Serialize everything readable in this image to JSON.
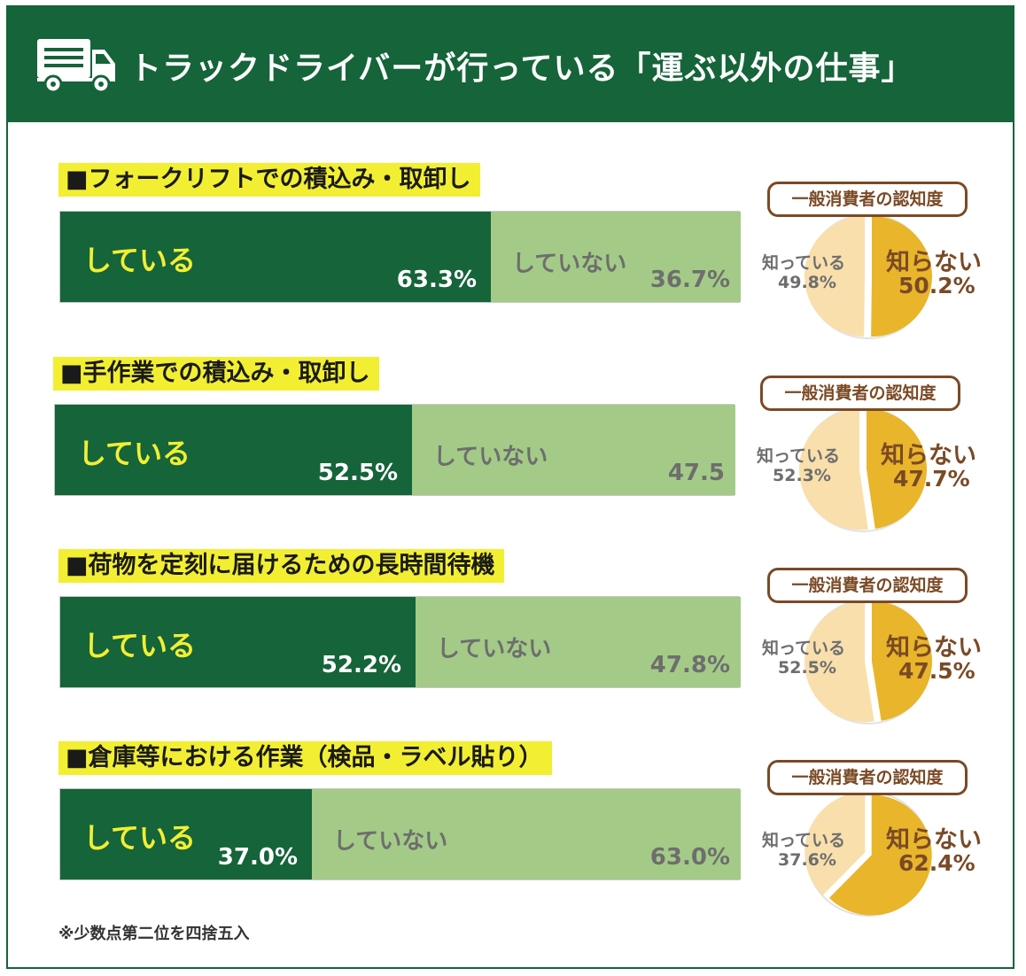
{
  "title": "トラックドライバーが行っている「運ぶ以外の仕事」",
  "footnote": "※少数点第二位を四捨五入",
  "colors": {
    "header": "#15643a",
    "doing": "#15643a",
    "not_doing": "#a3cb87",
    "highlight": "#f2ef32",
    "known": "#f8dfac",
    "unknown": "#e9b52a",
    "brown": "#7a4a25"
  },
  "icons": {
    "header": "truck-icon"
  },
  "chart_data": [
    {
      "type": "bar",
      "title": "■フォークリフトでの積込み・取卸し",
      "series": [
        {
          "name": "している",
          "value": 63.3,
          "label": "63.3%"
        },
        {
          "name": "していない",
          "value": 36.7,
          "label": "36.7%"
        }
      ],
      "pie": {
        "type": "pie",
        "title": "一般消費者の認知度",
        "slices": [
          {
            "name": "知っている",
            "value": 49.8,
            "label": "49.8%"
          },
          {
            "name": "知らない",
            "value": 50.2,
            "label": "50.2%"
          }
        ]
      }
    },
    {
      "type": "bar",
      "title": "■手作業での積込み・取卸し",
      "series": [
        {
          "name": "している",
          "value": 52.5,
          "label": "52.5%"
        },
        {
          "name": "していない",
          "value": 47.5,
          "label": "47.5"
        }
      ],
      "pie": {
        "type": "pie",
        "title": "一般消費者の認知度",
        "slices": [
          {
            "name": "知っている",
            "value": 52.3,
            "label": "52.3%"
          },
          {
            "name": "知らない",
            "value": 47.7,
            "label": "47.7%"
          }
        ]
      }
    },
    {
      "type": "bar",
      "title": "■荷物を定刻に届けるための長時間待機",
      "series": [
        {
          "name": "している",
          "value": 52.2,
          "label": "52.2%"
        },
        {
          "name": "していない",
          "value": 47.8,
          "label": "47.8%"
        }
      ],
      "pie": {
        "type": "pie",
        "title": "一般消費者の認知度",
        "slices": [
          {
            "name": "知っている",
            "value": 52.5,
            "label": "52.5%"
          },
          {
            "name": "知らない",
            "value": 47.5,
            "label": "47.5%"
          }
        ]
      }
    },
    {
      "type": "bar",
      "title": "■倉庫等における作業（検品・ラベル貼り）",
      "series": [
        {
          "name": "している",
          "value": 37.0,
          "label": "37.0%"
        },
        {
          "name": "していない",
          "value": 63.0,
          "label": "63.0%"
        }
      ],
      "pie": {
        "type": "pie",
        "title": "一般消費者の認知度",
        "slices": [
          {
            "name": "知っている",
            "value": 37.6,
            "label": "37.6%"
          },
          {
            "name": "知らない",
            "value": 62.4,
            "label": "62.4%"
          }
        ]
      }
    }
  ]
}
